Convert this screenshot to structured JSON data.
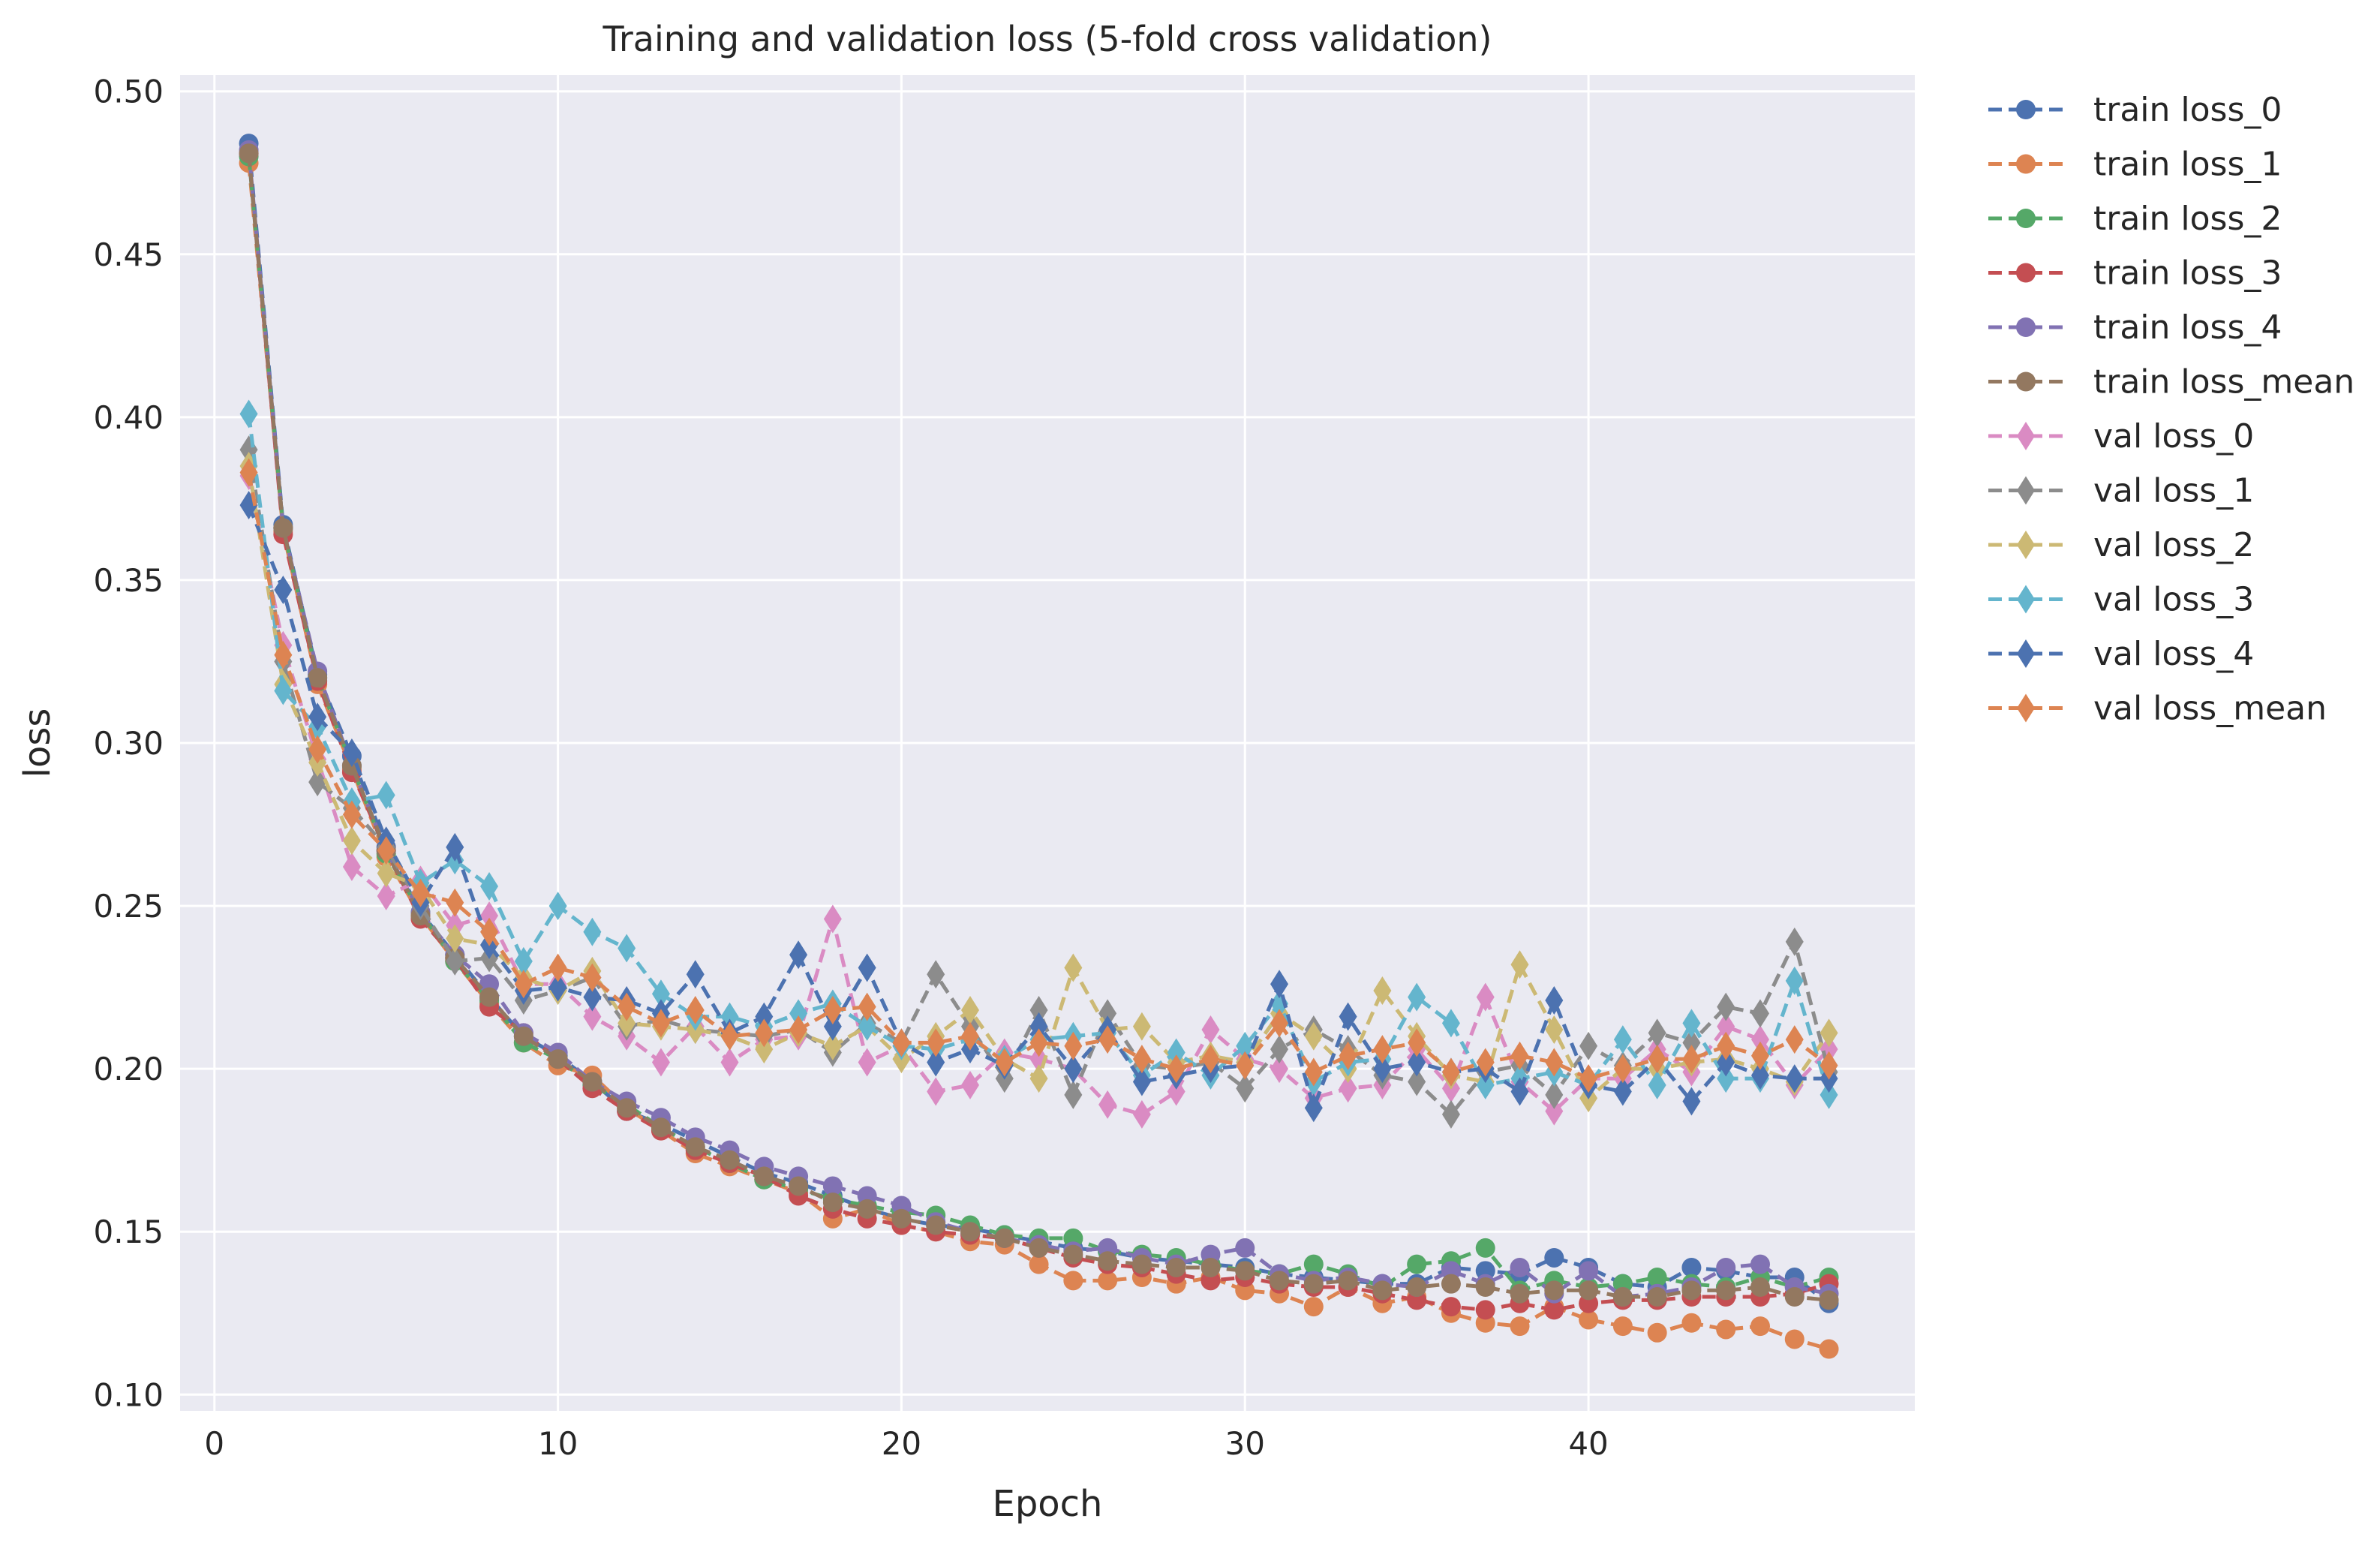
{
  "chart_data": {
    "type": "line",
    "title": "Training and validation loss (5-fold cross validation)",
    "xlabel": "Epoch",
    "ylabel": "loss",
    "xlim": [
      -1,
      49.5
    ],
    "ylim": [
      0.095,
      0.505
    ],
    "xticks": [
      0,
      10,
      20,
      30,
      40
    ],
    "yticks": [
      0.1,
      0.15,
      0.2,
      0.25,
      0.3,
      0.35,
      0.4,
      0.45,
      0.5
    ],
    "xtick_labels": [
      "0",
      "10",
      "20",
      "30",
      "40"
    ],
    "ytick_labels": [
      "0.10",
      "0.15",
      "0.20",
      "0.25",
      "0.30",
      "0.35",
      "0.40",
      "0.45",
      "0.50"
    ],
    "grid": true,
    "legend_position": "outside-right",
    "x": [
      1,
      2,
      3,
      4,
      5,
      6,
      7,
      8,
      9,
      10,
      11,
      12,
      13,
      14,
      15,
      16,
      17,
      18,
      19,
      20,
      21,
      22,
      23,
      24,
      25,
      26,
      27,
      28,
      29,
      30,
      31,
      32,
      33,
      34,
      35,
      36,
      37,
      38,
      39,
      40,
      41,
      42,
      43,
      44,
      45,
      46,
      47
    ],
    "series": [
      {
        "name": "train loss_0",
        "marker": "circle",
        "color": "#4c72b0",
        "values": [
          0.484,
          0.367,
          0.321,
          0.296,
          0.268,
          0.248,
          0.235,
          0.222,
          0.21,
          0.204,
          0.196,
          0.187,
          0.183,
          0.178,
          0.173,
          0.168,
          0.165,
          0.161,
          0.157,
          0.154,
          0.152,
          0.151,
          0.149,
          0.147,
          0.145,
          0.144,
          0.142,
          0.141,
          0.14,
          0.139,
          0.137,
          0.136,
          0.135,
          0.134,
          0.134,
          0.139,
          0.138,
          0.137,
          0.142,
          0.139,
          0.134,
          0.133,
          0.139,
          0.138,
          0.136,
          0.136,
          0.128
        ]
      },
      {
        "name": "train loss_1",
        "marker": "circle",
        "color": "#dd8452",
        "values": [
          0.478,
          0.365,
          0.318,
          0.292,
          0.265,
          0.247,
          0.233,
          0.22,
          0.208,
          0.201,
          0.198,
          0.188,
          0.181,
          0.174,
          0.17,
          0.166,
          0.162,
          0.154,
          0.157,
          0.152,
          0.15,
          0.147,
          0.146,
          0.14,
          0.135,
          0.135,
          0.136,
          0.134,
          0.136,
          0.132,
          0.131,
          0.127,
          0.133,
          0.128,
          0.13,
          0.125,
          0.122,
          0.121,
          0.127,
          0.123,
          0.121,
          0.119,
          0.122,
          0.12,
          0.121,
          0.117,
          0.114
        ]
      },
      {
        "name": "train loss_2",
        "marker": "circle",
        "color": "#55a868",
        "values": [
          0.48,
          0.366,
          0.32,
          0.293,
          0.266,
          0.248,
          0.233,
          0.221,
          0.208,
          0.203,
          0.195,
          0.189,
          0.182,
          0.176,
          0.171,
          0.166,
          0.163,
          0.16,
          0.158,
          0.156,
          0.155,
          0.152,
          0.149,
          0.148,
          0.148,
          0.144,
          0.143,
          0.142,
          0.14,
          0.138,
          0.137,
          0.14,
          0.137,
          0.133,
          0.14,
          0.141,
          0.145,
          0.132,
          0.135,
          0.133,
          0.134,
          0.136,
          0.134,
          0.133,
          0.136,
          0.133,
          0.136
        ]
      },
      {
        "name": "train loss_3",
        "marker": "circle",
        "color": "#c44e52",
        "values": [
          0.481,
          0.364,
          0.319,
          0.291,
          0.267,
          0.246,
          0.234,
          0.219,
          0.211,
          0.203,
          0.194,
          0.187,
          0.181,
          0.175,
          0.171,
          0.167,
          0.161,
          0.157,
          0.154,
          0.152,
          0.15,
          0.149,
          0.148,
          0.145,
          0.142,
          0.14,
          0.139,
          0.137,
          0.135,
          0.136,
          0.134,
          0.133,
          0.133,
          0.131,
          0.129,
          0.127,
          0.126,
          0.128,
          0.126,
          0.128,
          0.129,
          0.129,
          0.13,
          0.13,
          0.13,
          0.131,
          0.134
        ]
      },
      {
        "name": "train loss_4",
        "marker": "circle",
        "color": "#8172b3",
        "values": [
          0.482,
          0.366,
          0.322,
          0.293,
          0.267,
          0.248,
          0.235,
          0.226,
          0.211,
          0.205,
          0.196,
          0.19,
          0.185,
          0.179,
          0.175,
          0.17,
          0.167,
          0.164,
          0.161,
          0.158,
          0.153,
          0.15,
          0.148,
          0.146,
          0.144,
          0.145,
          0.142,
          0.14,
          0.143,
          0.145,
          0.137,
          0.135,
          0.136,
          0.134,
          0.133,
          0.138,
          0.134,
          0.139,
          0.131,
          0.138,
          0.13,
          0.131,
          0.133,
          0.139,
          0.14,
          0.133,
          0.131
        ]
      },
      {
        "name": "train loss_mean",
        "marker": "circle",
        "color": "#937860",
        "values": [
          0.481,
          0.366,
          0.32,
          0.293,
          0.267,
          0.247,
          0.234,
          0.222,
          0.21,
          0.203,
          0.196,
          0.188,
          0.182,
          0.176,
          0.172,
          0.167,
          0.164,
          0.159,
          0.157,
          0.154,
          0.152,
          0.15,
          0.148,
          0.145,
          0.143,
          0.141,
          0.14,
          0.139,
          0.139,
          0.138,
          0.135,
          0.134,
          0.135,
          0.132,
          0.133,
          0.134,
          0.133,
          0.131,
          0.132,
          0.132,
          0.13,
          0.13,
          0.132,
          0.132,
          0.133,
          0.13,
          0.129
        ]
      },
      {
        "name": "val loss_0",
        "marker": "diamond",
        "color": "#da8bc3",
        "values": [
          0.382,
          0.33,
          0.295,
          0.262,
          0.253,
          0.258,
          0.244,
          0.247,
          0.226,
          0.226,
          0.216,
          0.21,
          0.202,
          0.213,
          0.202,
          0.209,
          0.21,
          0.246,
          0.202,
          0.207,
          0.193,
          0.195,
          0.205,
          0.203,
          0.2,
          0.189,
          0.186,
          0.193,
          0.212,
          0.203,
          0.2,
          0.191,
          0.194,
          0.195,
          0.206,
          0.194,
          0.222,
          0.196,
          0.187,
          0.197,
          0.197,
          0.206,
          0.199,
          0.213,
          0.209,
          0.195,
          0.206
        ]
      },
      {
        "name": "val loss_1",
        "marker": "diamond",
        "color": "#8c8c8c",
        "values": [
          0.39,
          0.325,
          0.288,
          0.28,
          0.268,
          0.25,
          0.233,
          0.234,
          0.221,
          0.224,
          0.228,
          0.213,
          0.215,
          0.212,
          0.211,
          0.21,
          0.212,
          0.205,
          0.214,
          0.208,
          0.229,
          0.213,
          0.197,
          0.218,
          0.192,
          0.217,
          0.201,
          0.2,
          0.202,
          0.194,
          0.206,
          0.212,
          0.206,
          0.198,
          0.196,
          0.186,
          0.199,
          0.201,
          0.192,
          0.207,
          0.201,
          0.211,
          0.208,
          0.219,
          0.217,
          0.239,
          0.199
        ]
      },
      {
        "name": "val loss_2",
        "marker": "diamond",
        "color": "#ccb974",
        "values": [
          0.385,
          0.318,
          0.294,
          0.27,
          0.26,
          0.256,
          0.24,
          0.238,
          0.228,
          0.224,
          0.23,
          0.214,
          0.213,
          0.212,
          0.21,
          0.206,
          0.211,
          0.207,
          0.213,
          0.203,
          0.21,
          0.218,
          0.203,
          0.197,
          0.231,
          0.212,
          0.213,
          0.202,
          0.204,
          0.202,
          0.217,
          0.21,
          0.2,
          0.224,
          0.21,
          0.198,
          0.196,
          0.232,
          0.212,
          0.191,
          0.2,
          0.2,
          0.202,
          0.203,
          0.2,
          0.196,
          0.211
        ]
      },
      {
        "name": "val loss_3",
        "marker": "diamond",
        "color": "#64b5cd",
        "values": [
          0.401,
          0.316,
          0.305,
          0.282,
          0.284,
          0.257,
          0.264,
          0.256,
          0.233,
          0.25,
          0.242,
          0.237,
          0.223,
          0.216,
          0.216,
          0.213,
          0.217,
          0.22,
          0.213,
          0.207,
          0.206,
          0.209,
          0.203,
          0.209,
          0.21,
          0.211,
          0.198,
          0.205,
          0.198,
          0.207,
          0.22,
          0.196,
          0.202,
          0.203,
          0.222,
          0.214,
          0.195,
          0.197,
          0.199,
          0.195,
          0.209,
          0.195,
          0.214,
          0.197,
          0.197,
          0.227,
          0.192
        ]
      },
      {
        "name": "val loss_4",
        "marker": "diamond",
        "color": "#4c72b0",
        "values": [
          0.373,
          0.347,
          0.308,
          0.297,
          0.27,
          0.251,
          0.268,
          0.238,
          0.224,
          0.225,
          0.222,
          0.221,
          0.217,
          0.229,
          0.211,
          0.216,
          0.235,
          0.213,
          0.231,
          0.208,
          0.202,
          0.206,
          0.201,
          0.213,
          0.2,
          0.212,
          0.196,
          0.198,
          0.2,
          0.201,
          0.226,
          0.188,
          0.216,
          0.2,
          0.202,
          0.199,
          0.2,
          0.193,
          0.221,
          0.195,
          0.193,
          0.203,
          0.19,
          0.202,
          0.198,
          0.197,
          0.197
        ]
      },
      {
        "name": "val loss_mean",
        "marker": "diamond",
        "color": "#dd8452",
        "values": [
          0.383,
          0.327,
          0.298,
          0.278,
          0.267,
          0.254,
          0.251,
          0.242,
          0.226,
          0.231,
          0.228,
          0.219,
          0.214,
          0.218,
          0.21,
          0.211,
          0.212,
          0.218,
          0.219,
          0.208,
          0.208,
          0.21,
          0.202,
          0.208,
          0.207,
          0.209,
          0.203,
          0.2,
          0.203,
          0.201,
          0.214,
          0.199,
          0.204,
          0.206,
          0.208,
          0.199,
          0.202,
          0.204,
          0.202,
          0.197,
          0.2,
          0.203,
          0.203,
          0.207,
          0.204,
          0.209,
          0.201
        ]
      }
    ]
  }
}
